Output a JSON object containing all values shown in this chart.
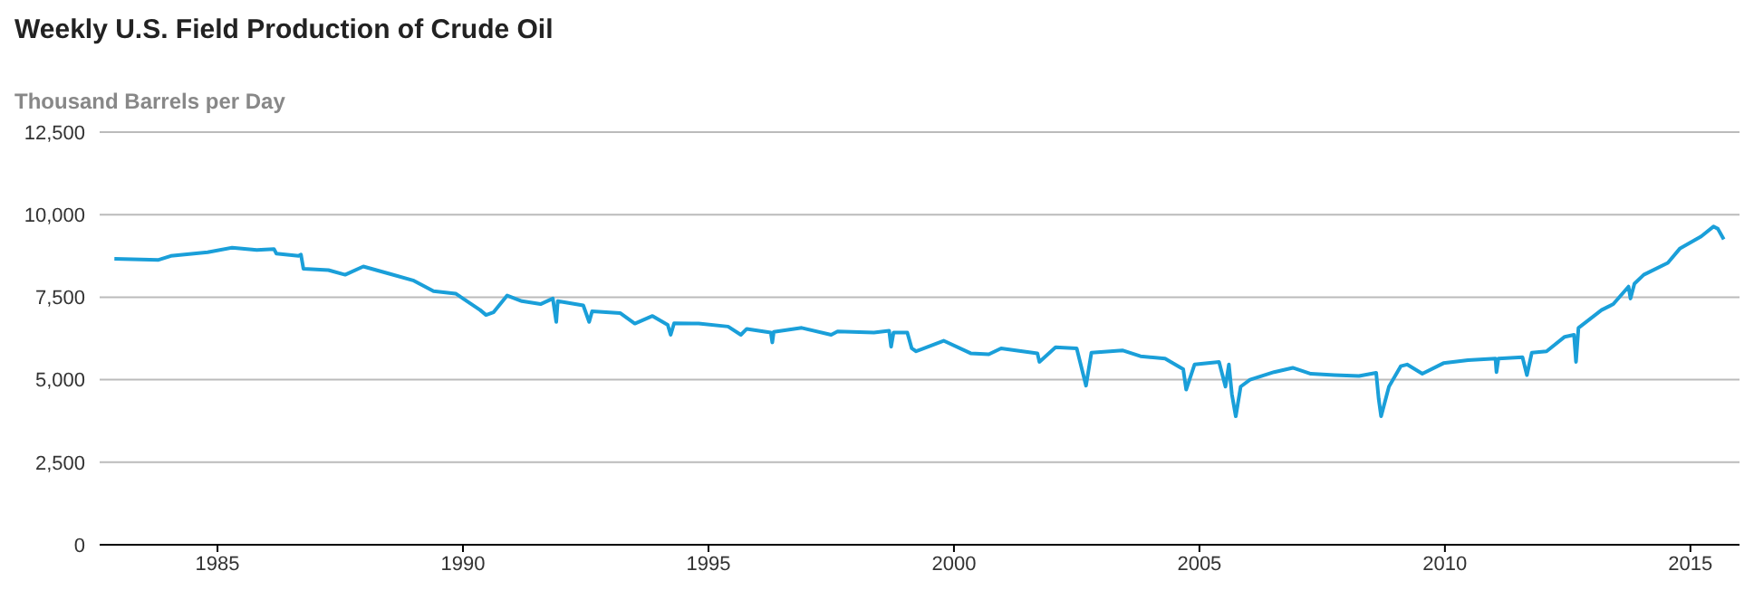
{
  "chart_data": {
    "type": "line",
    "title": "Weekly U.S. Field Production of Crude Oil",
    "ylabel": "Thousand Barrels per Day",
    "xlim": [
      1982.6,
      2016
    ],
    "xticks": [
      1985,
      1990,
      1995,
      2000,
      2005,
      2010,
      2015
    ],
    "ylim": [
      0,
      12500
    ],
    "yticks": [
      {
        "value": 0,
        "label": "0"
      },
      {
        "value": 2500,
        "label": "2,500"
      },
      {
        "value": 5000,
        "label": "5,000"
      },
      {
        "value": 7500,
        "label": "7,500"
      },
      {
        "value": 10000,
        "label": "10,000"
      },
      {
        "value": 12500,
        "label": "12,500"
      }
    ],
    "grid": "y",
    "marker": "none",
    "line_style": "solid",
    "series": [
      {
        "color": "#1a9fd9",
        "x": [
          1982.9,
          1983.8,
          1984.05,
          1984.8,
          1985.3,
          1985.8,
          1986.15,
          1986.2,
          1986.65,
          1986.7,
          1986.75,
          1987.26,
          1987.6,
          1987.97,
          1988.5,
          1989.0,
          1989.4,
          1989.85,
          1990.35,
          1990.47,
          1990.62,
          1990.9,
          1991.2,
          1991.58,
          1991.83,
          1991.9,
          1991.93,
          1992.45,
          1992.57,
          1992.63,
          1993.2,
          1993.5,
          1993.86,
          1994.17,
          1994.23,
          1994.3,
          1994.8,
          1995.4,
          1995.66,
          1995.78,
          1996.27,
          1996.3,
          1996.33,
          1996.9,
          1997.5,
          1997.63,
          1998.37,
          1998.68,
          1998.72,
          1998.77,
          1999.05,
          1999.14,
          1999.23,
          1999.79,
          2000.34,
          2000.71,
          2000.96,
          2001.7,
          2001.74,
          2002.07,
          2002.5,
          2002.69,
          2002.8,
          2003.43,
          2003.8,
          2004.3,
          2004.67,
          2004.73,
          2004.9,
          2005.4,
          2005.53,
          2005.6,
          2005.66,
          2005.74,
          2005.84,
          2006.03,
          2006.52,
          2006.9,
          2007.27,
          2007.75,
          2008.25,
          2008.6,
          2008.65,
          2008.7,
          2008.86,
          2009.1,
          2009.23,
          2009.54,
          2009.97,
          2010.47,
          2011.03,
          2011.05,
          2011.09,
          2011.58,
          2011.67,
          2011.77,
          2012.07,
          2012.44,
          2012.63,
          2012.67,
          2012.72,
          2013.19,
          2013.43,
          2013.74,
          2013.78,
          2013.86,
          2014.05,
          2014.54,
          2014.79,
          2015.22,
          2015.47,
          2015.56,
          2015.68
        ],
        "values": [
          8660,
          8630,
          8750,
          8860,
          9000,
          8930,
          8960,
          8820,
          8750,
          8790,
          8360,
          8320,
          8180,
          8430,
          8210,
          8000,
          7680,
          7610,
          7110,
          6960,
          7040,
          7550,
          7380,
          7290,
          7460,
          6750,
          7380,
          7250,
          6750,
          7070,
          7020,
          6700,
          6930,
          6660,
          6360,
          6710,
          6700,
          6610,
          6360,
          6540,
          6430,
          6130,
          6450,
          6570,
          6360,
          6460,
          6430,
          6480,
          6000,
          6430,
          6430,
          5950,
          5860,
          6180,
          5800,
          5770,
          5950,
          5800,
          5540,
          5980,
          5950,
          4820,
          5820,
          5890,
          5710,
          5640,
          5320,
          4700,
          5460,
          5540,
          4790,
          5460,
          4570,
          3890,
          4790,
          5000,
          5230,
          5360,
          5180,
          5140,
          5110,
          5210,
          4430,
          3890,
          4790,
          5410,
          5460,
          5180,
          5500,
          5590,
          5640,
          5230,
          5640,
          5680,
          5140,
          5820,
          5860,
          6300,
          6360,
          5540,
          6570,
          7110,
          7290,
          7820,
          7460,
          7910,
          8180,
          8540,
          8980,
          9340,
          9640,
          9570,
          9250
        ]
      }
    ]
  }
}
